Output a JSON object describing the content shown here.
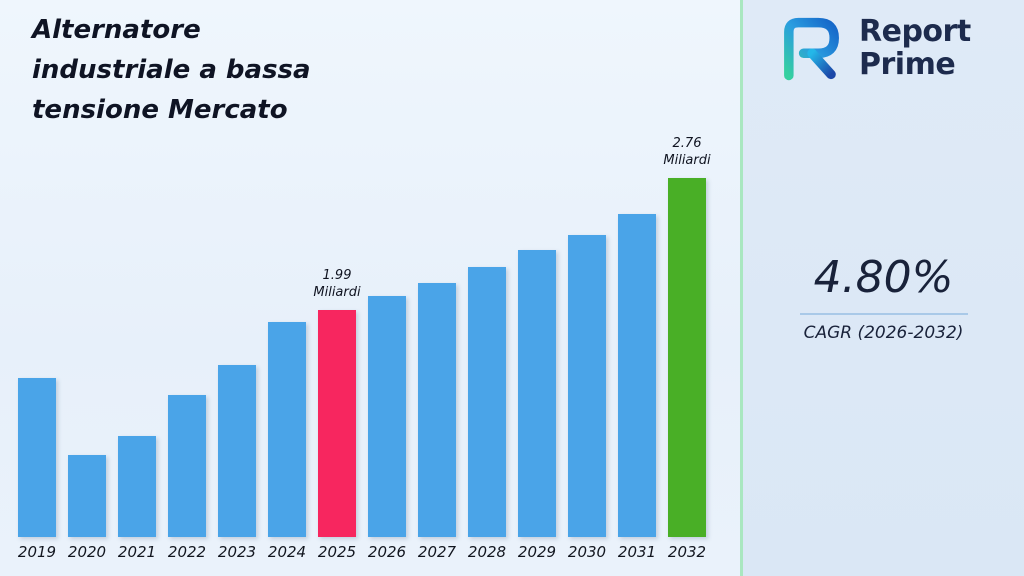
{
  "title": "Alternatore\nindustriale a bassa\ntensione Mercato",
  "logo": {
    "line1": "Report",
    "line2": "Prime"
  },
  "cagr": {
    "value": "4.80%",
    "label": "CAGR (2026-2032)"
  },
  "chart_data": {
    "type": "bar",
    "title": "Alternatore industriale a bassa tensione Mercato",
    "unit": "Miliardi",
    "xlabel": "",
    "ylabel": "",
    "categories": [
      "2019",
      "2020",
      "2021",
      "2022",
      "2023",
      "2024",
      "2025",
      "2026",
      "2027",
      "2028",
      "2029",
      "2030",
      "2031",
      "2032"
    ],
    "values": [
      1.59,
      1.14,
      1.25,
      1.49,
      1.67,
      1.92,
      1.99,
      2.07,
      2.15,
      2.24,
      2.34,
      2.43,
      2.55,
      2.76
    ],
    "ylim": [
      0.66,
      3.02
    ],
    "grid": false,
    "legend": false,
    "colors": {
      "default": "#4aa4e8",
      "2025": "#f7265f",
      "2032": "#49af26"
    },
    "annotations": [
      {
        "category": "2025",
        "lines": [
          "1.99",
          "Miliardi"
        ]
      },
      {
        "category": "2032",
        "lines": [
          "2.76",
          "Miliardi"
        ]
      }
    ]
  }
}
